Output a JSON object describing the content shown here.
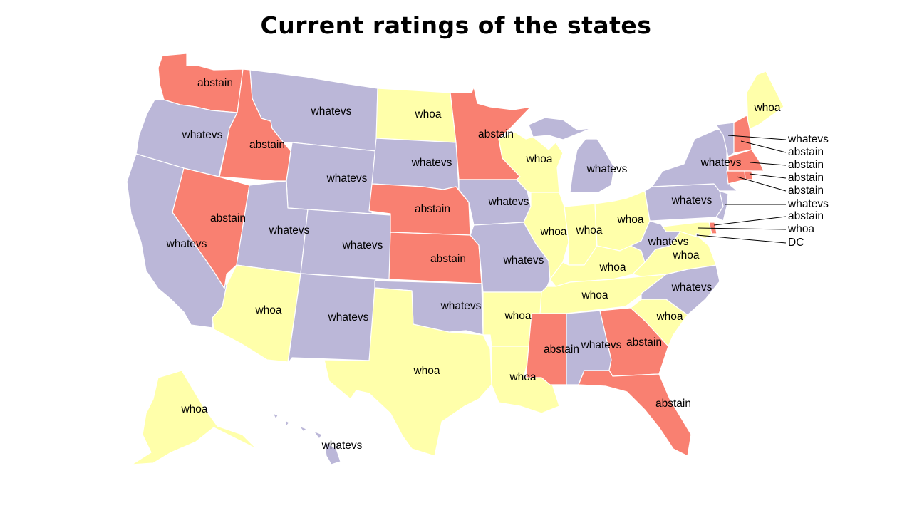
{
  "title": "Current ratings of the states",
  "colors": {
    "whoa": "#ffffaa",
    "whatevs": "#bbb7d8",
    "abstain": "#f98071"
  },
  "states": {
    "WA": {
      "rating": "abstain"
    },
    "OR": {
      "rating": "whatevs"
    },
    "CA": {
      "rating": "whatevs"
    },
    "ID": {
      "rating": "abstain"
    },
    "NV": {
      "rating": "abstain"
    },
    "MT": {
      "rating": "whatevs"
    },
    "WY": {
      "rating": "whatevs"
    },
    "UT": {
      "rating": "whatevs"
    },
    "AZ": {
      "rating": "whoa"
    },
    "CO": {
      "rating": "whatevs"
    },
    "NM": {
      "rating": "whatevs"
    },
    "ND": {
      "rating": "whoa"
    },
    "SD": {
      "rating": "whatevs"
    },
    "NE": {
      "rating": "abstain"
    },
    "KS": {
      "rating": "abstain"
    },
    "OK": {
      "rating": "whatevs"
    },
    "TX": {
      "rating": "whoa"
    },
    "MN": {
      "rating": "abstain"
    },
    "IA": {
      "rating": "whatevs"
    },
    "MO": {
      "rating": "whatevs"
    },
    "AR": {
      "rating": "whoa"
    },
    "LA": {
      "rating": "whoa"
    },
    "WI": {
      "rating": "whoa"
    },
    "IL": {
      "rating": "whoa"
    },
    "MI": {
      "rating": "whatevs"
    },
    "IN": {
      "rating": "whoa"
    },
    "OH": {
      "rating": "whoa"
    },
    "KY": {
      "rating": "whoa"
    },
    "TN": {
      "rating": "whoa"
    },
    "MS": {
      "rating": "abstain"
    },
    "AL": {
      "rating": "whatevs"
    },
    "GA": {
      "rating": "abstain"
    },
    "FL": {
      "rating": "abstain"
    },
    "SC": {
      "rating": "whoa"
    },
    "NC": {
      "rating": "whatevs"
    },
    "VA": {
      "rating": "whoa"
    },
    "WV": {
      "rating": "whatevs"
    },
    "PA": {
      "rating": "whatevs"
    },
    "NY": {
      "rating": "whatevs"
    },
    "ME": {
      "rating": "whoa"
    },
    "VT": {
      "rating": "whatevs"
    },
    "NH": {
      "rating": "abstain"
    },
    "MA": {
      "rating": "abstain"
    },
    "RI": {
      "rating": "abstain"
    },
    "CT": {
      "rating": "abstain"
    },
    "NJ": {
      "rating": "whatevs"
    },
    "DE": {
      "rating": "abstain"
    },
    "MD": {
      "rating": "whoa"
    },
    "DC": {
      "rating": "whatevs"
    },
    "AK": {
      "rating": "whoa"
    },
    "HI": {
      "rating": "whatevs"
    }
  },
  "callouts": [
    {
      "state": "VT",
      "text": "whatevs"
    },
    {
      "state": "NH",
      "text": "abstain"
    },
    {
      "state": "MA",
      "text": "abstain"
    },
    {
      "state": "RI",
      "text": "abstain"
    },
    {
      "state": "CT",
      "text": "abstain"
    },
    {
      "state": "NJ",
      "text": "whatevs"
    },
    {
      "state": "DE",
      "text": "abstain"
    },
    {
      "state": "MD",
      "text": "whoa"
    },
    {
      "state": "DC",
      "text": "DC"
    }
  ]
}
